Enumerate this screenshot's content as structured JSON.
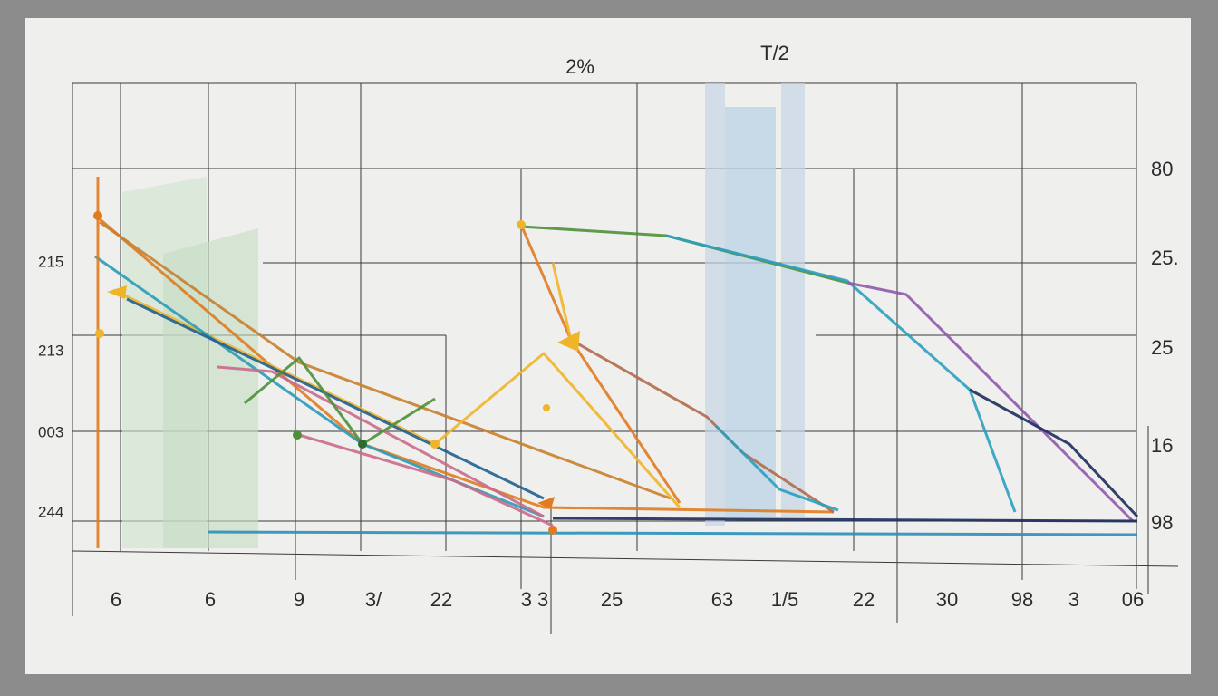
{
  "header": {
    "title": "2%",
    "subtitle": "T/2"
  },
  "left_labels": [
    "215",
    "213",
    "003",
    "244"
  ],
  "right_labels": [
    "80",
    "25.",
    "25",
    "16",
    "98"
  ],
  "bottom_labels": [
    "6",
    "6",
    "9",
    "3/",
    "22",
    "3 3",
    "25",
    "63",
    "1/5",
    "22",
    "30",
    "98",
    "3",
    "06"
  ]
}
